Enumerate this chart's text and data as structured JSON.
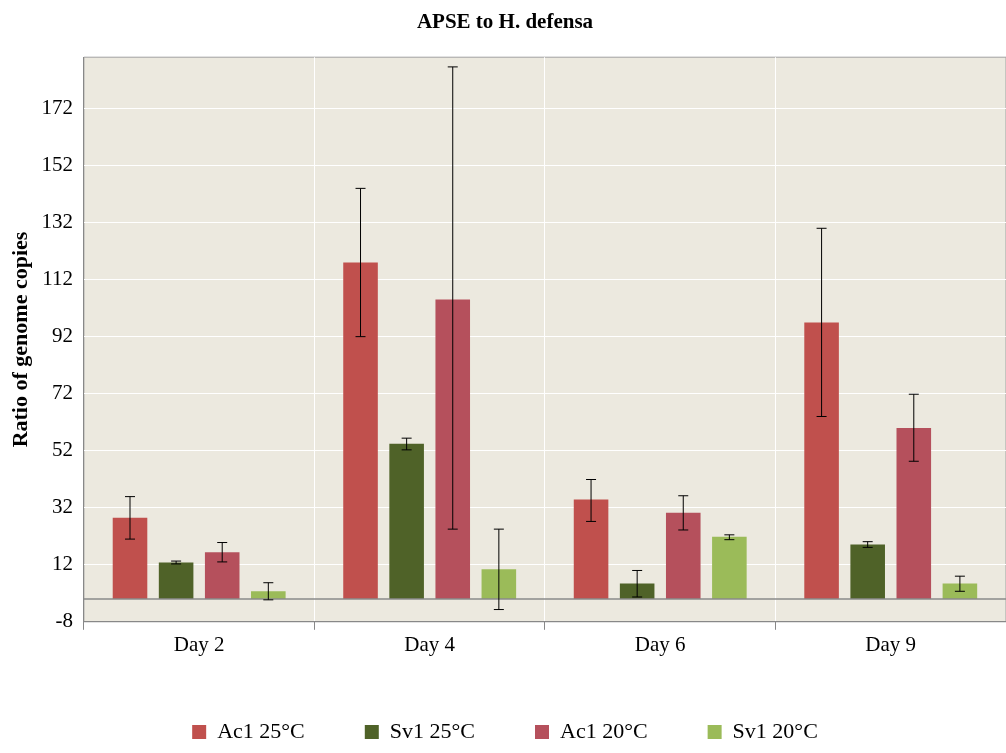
{
  "chart_data": {
    "type": "bar",
    "title": "APSE to H. defensa",
    "ylabel": "Ratio of genome copies",
    "categories": [
      "Day 2",
      "Day 4",
      "Day 6",
      "Day 9"
    ],
    "series": [
      {
        "name": "Ac1 25°C",
        "color": "#c0504d",
        "values": [
          28.5,
          118,
          34.9,
          97
        ],
        "errors": [
          [
            21,
            35.9
          ],
          [
            92,
            144
          ],
          [
            27.2,
            41.9
          ],
          [
            64,
            130
          ]
        ]
      },
      {
        "name": "Sv1 25°C",
        "color": "#4f6228",
        "values": [
          12.8,
          54.4,
          5.4,
          19.1
        ],
        "errors": [
          [
            12.3,
            13.3
          ],
          [
            52.3,
            56.4
          ],
          [
            0.7,
            10
          ],
          [
            18.1,
            20.1
          ]
        ]
      },
      {
        "name": "Ac1 20°C",
        "color": "#b5505c",
        "values": [
          16.4,
          105,
          30.2,
          60
        ],
        "errors": [
          [
            13,
            19.8
          ],
          [
            24.5,
            186.6
          ],
          [
            24.2,
            36.2
          ],
          [
            48.3,
            71.8
          ]
        ]
      },
      {
        "name": "Sv1 20°C",
        "color": "#9bbb59",
        "values": [
          2.7,
          10.4,
          21.8,
          5.4
        ],
        "errors": [
          [
            -0.3,
            5.7
          ],
          [
            -3.7,
            24.5
          ],
          [
            20.8,
            22.5
          ],
          [
            2.7,
            8
          ]
        ]
      }
    ],
    "ylim": [
      -8,
      190
    ],
    "yticks": [
      -8,
      12,
      32,
      52,
      72,
      92,
      112,
      132,
      152,
      172
    ],
    "grid": true,
    "legend": "bottom"
  }
}
